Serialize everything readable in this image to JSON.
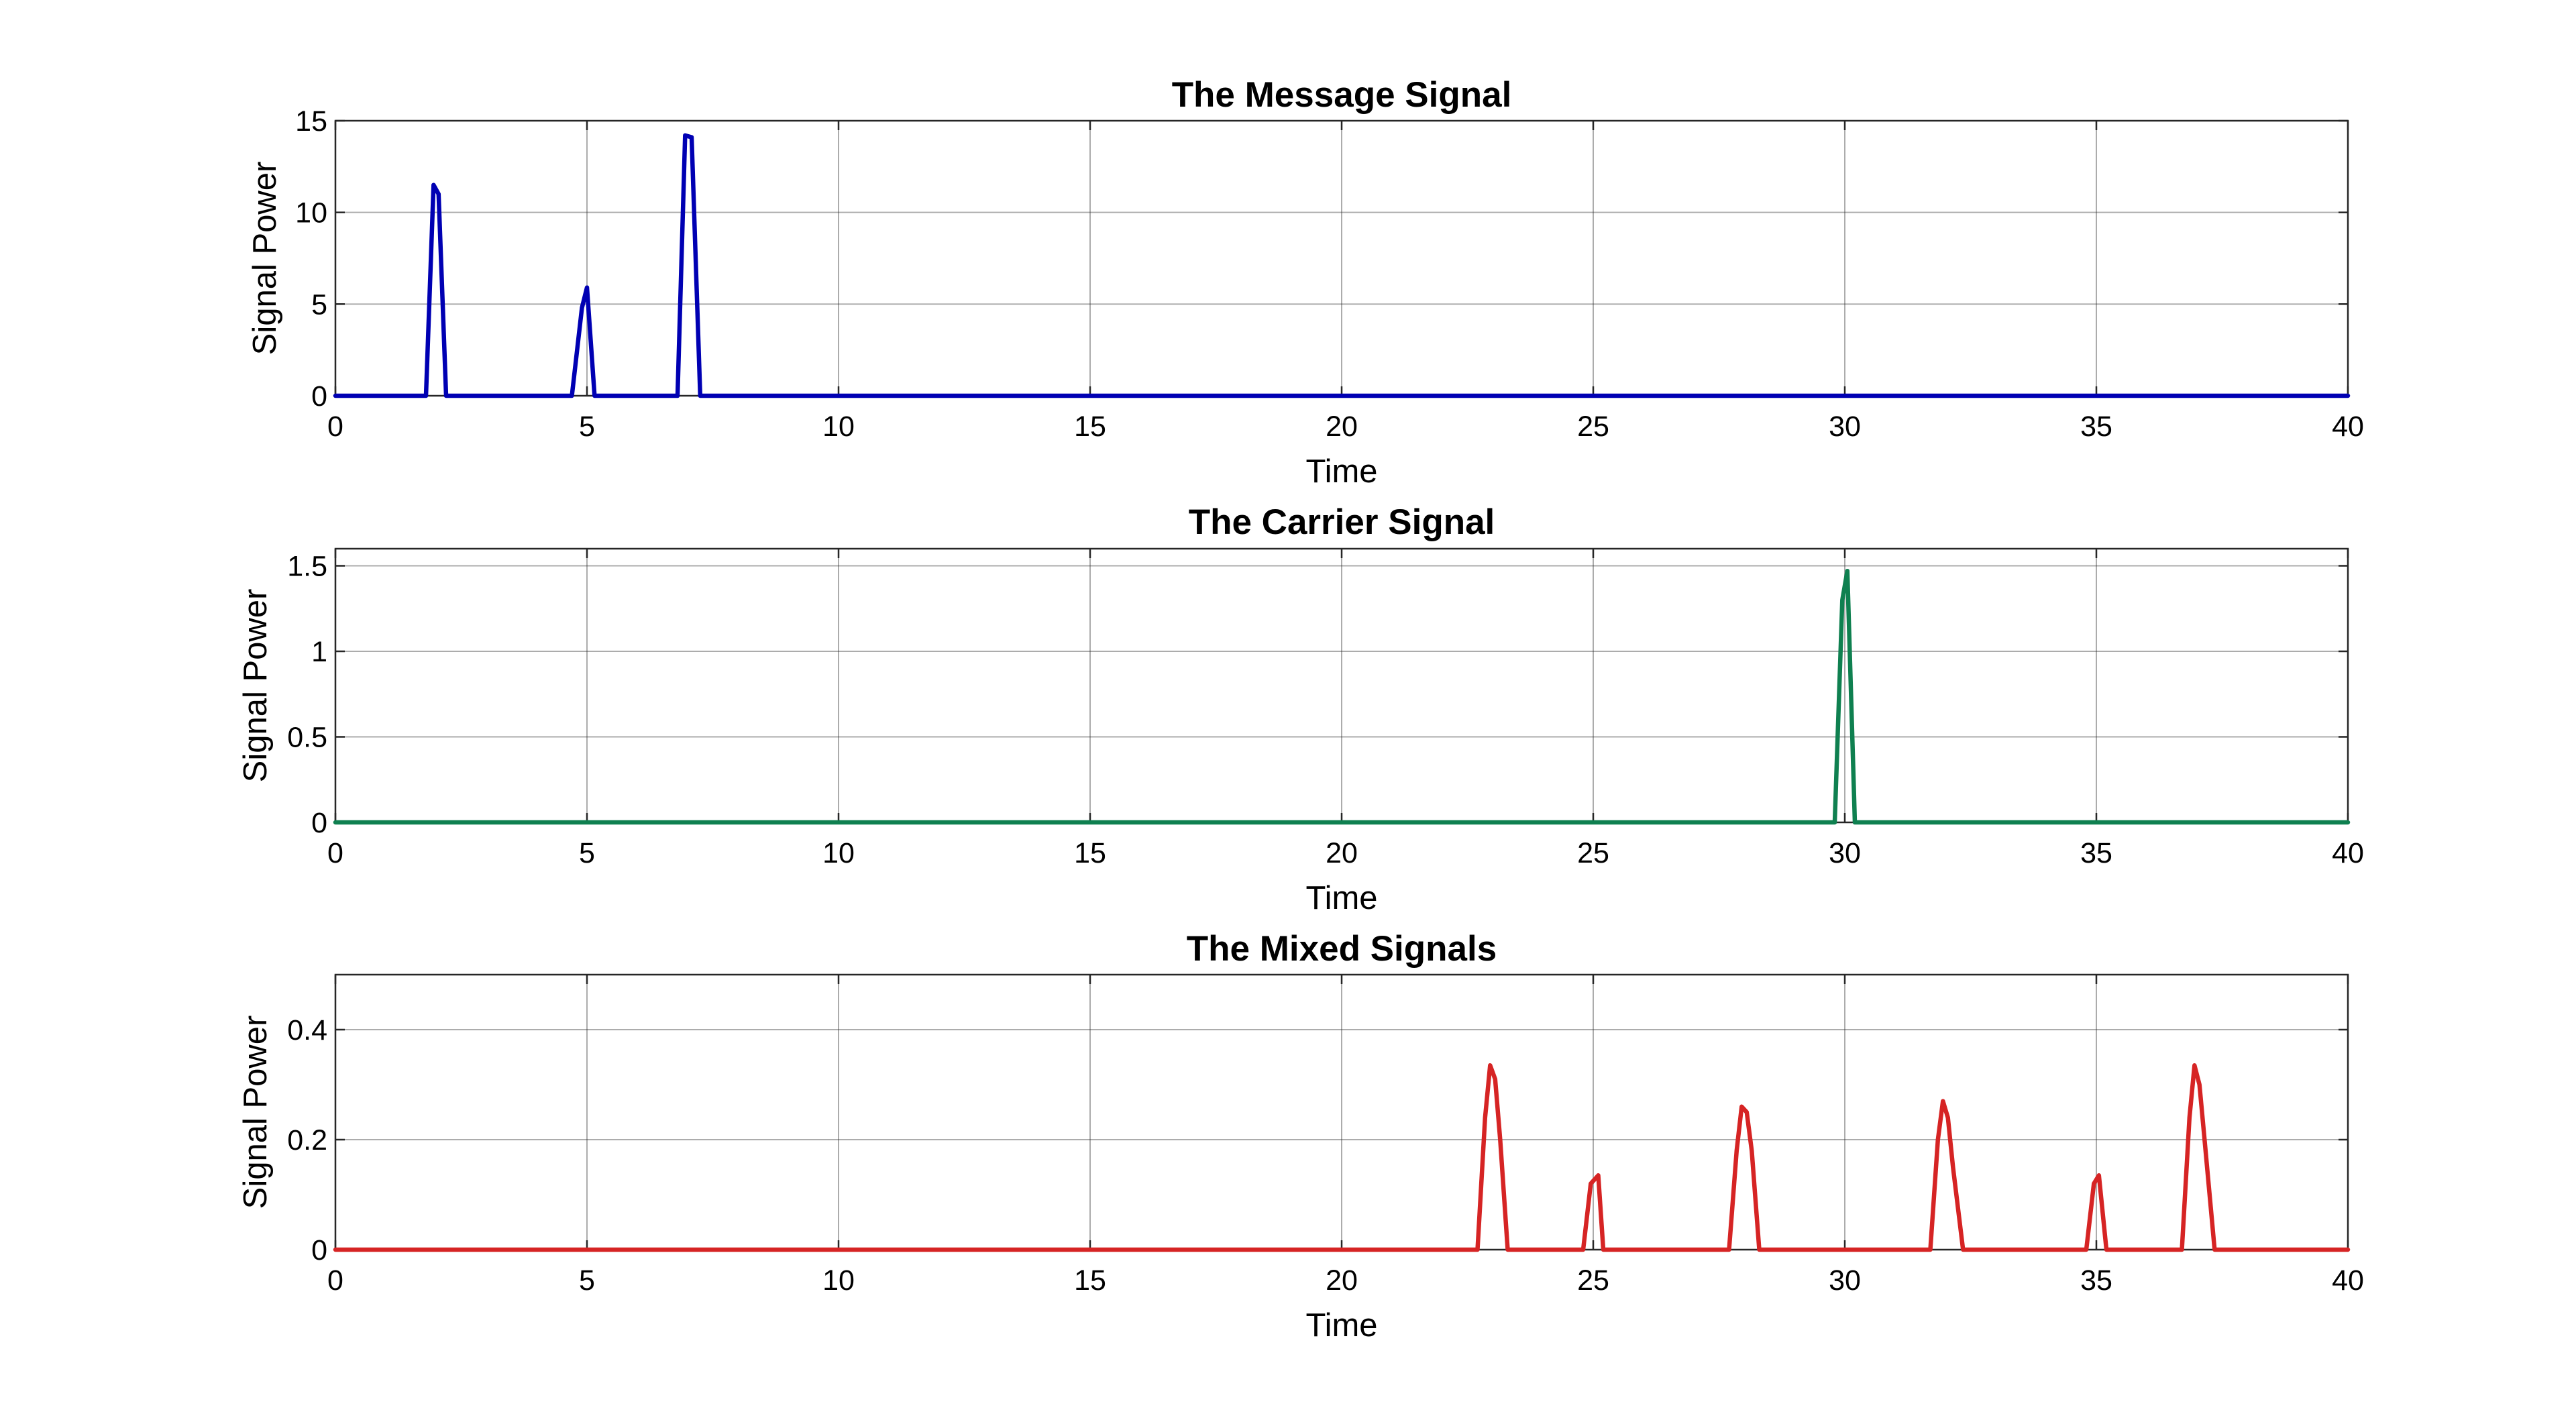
{
  "chart_data": [
    {
      "type": "line",
      "title": "The Message Signal",
      "xlabel": "Time",
      "ylabel": "Signal Power",
      "xlim": [
        0,
        40
      ],
      "ylim": [
        0,
        15
      ],
      "xticks": [
        0,
        5,
        10,
        15,
        20,
        25,
        30,
        35,
        40
      ],
      "yticks": [
        0,
        5,
        10,
        15
      ],
      "xtick_labels": [
        "0",
        "5",
        "10",
        "15",
        "20",
        "25",
        "30",
        "35",
        "40"
      ],
      "ytick_labels": [
        "0",
        "5",
        "10",
        "15"
      ],
      "grid": true,
      "color": "#0000b3",
      "x": [
        0,
        1.8,
        1.95,
        2.05,
        2.2,
        4.7,
        4.9,
        5.0,
        5.15,
        6.8,
        6.95,
        7.08,
        7.25,
        40
      ],
      "y": [
        0,
        0,
        11.5,
        11.0,
        0,
        0,
        4.8,
        5.9,
        0,
        0,
        14.2,
        14.1,
        0,
        0
      ]
    },
    {
      "type": "line",
      "title": "The Carrier Signal",
      "xlabel": "Time",
      "ylabel": "Signal Power",
      "xlim": [
        0,
        40
      ],
      "ylim": [
        0,
        1.6
      ],
      "xticks": [
        0,
        5,
        10,
        15,
        20,
        25,
        30,
        35,
        40
      ],
      "yticks": [
        0,
        0.5,
        1,
        1.5
      ],
      "xtick_labels": [
        "0",
        "5",
        "10",
        "15",
        "20",
        "25",
        "30",
        "35",
        "40"
      ],
      "ytick_labels": [
        "0",
        "0.5",
        "1",
        "1.5"
      ],
      "grid": true,
      "color": "#0f8050",
      "x": [
        0,
        29.8,
        29.95,
        30.05,
        30.2,
        40
      ],
      "y": [
        0,
        0,
        1.3,
        1.47,
        0,
        0
      ]
    },
    {
      "type": "line",
      "title": "The Mixed Signals",
      "xlabel": "Time",
      "ylabel": "Signal Power",
      "xlim": [
        0,
        40
      ],
      "ylim": [
        0,
        0.5
      ],
      "xticks": [
        0,
        5,
        10,
        15,
        20,
        25,
        30,
        35,
        40
      ],
      "yticks": [
        0,
        0.2,
        0.4
      ],
      "xtick_labels": [
        "0",
        "5",
        "10",
        "15",
        "20",
        "25",
        "30",
        "35",
        "40"
      ],
      "ytick_labels": [
        "0",
        "0.2",
        "0.4"
      ],
      "grid": true,
      "color": "#d62424",
      "x": [
        0,
        22.7,
        22.85,
        22.95,
        23.05,
        23.15,
        23.3,
        24.8,
        24.95,
        25.1,
        25.2,
        27.7,
        27.85,
        27.95,
        28.05,
        28.15,
        28.3,
        31.7,
        31.85,
        31.95,
        32.05,
        32.15,
        32.35,
        34.8,
        34.95,
        35.05,
        35.2,
        36.7,
        36.85,
        36.95,
        37.05,
        37.15,
        37.35,
        40
      ],
      "y": [
        0,
        0,
        0.24,
        0.335,
        0.31,
        0.2,
        0,
        0,
        0.12,
        0.135,
        0,
        0,
        0.18,
        0.26,
        0.25,
        0.18,
        0,
        0,
        0.2,
        0.27,
        0.24,
        0.15,
        0,
        0,
        0.12,
        0.135,
        0,
        0,
        0.24,
        0.335,
        0.3,
        0.2,
        0,
        0
      ]
    }
  ]
}
